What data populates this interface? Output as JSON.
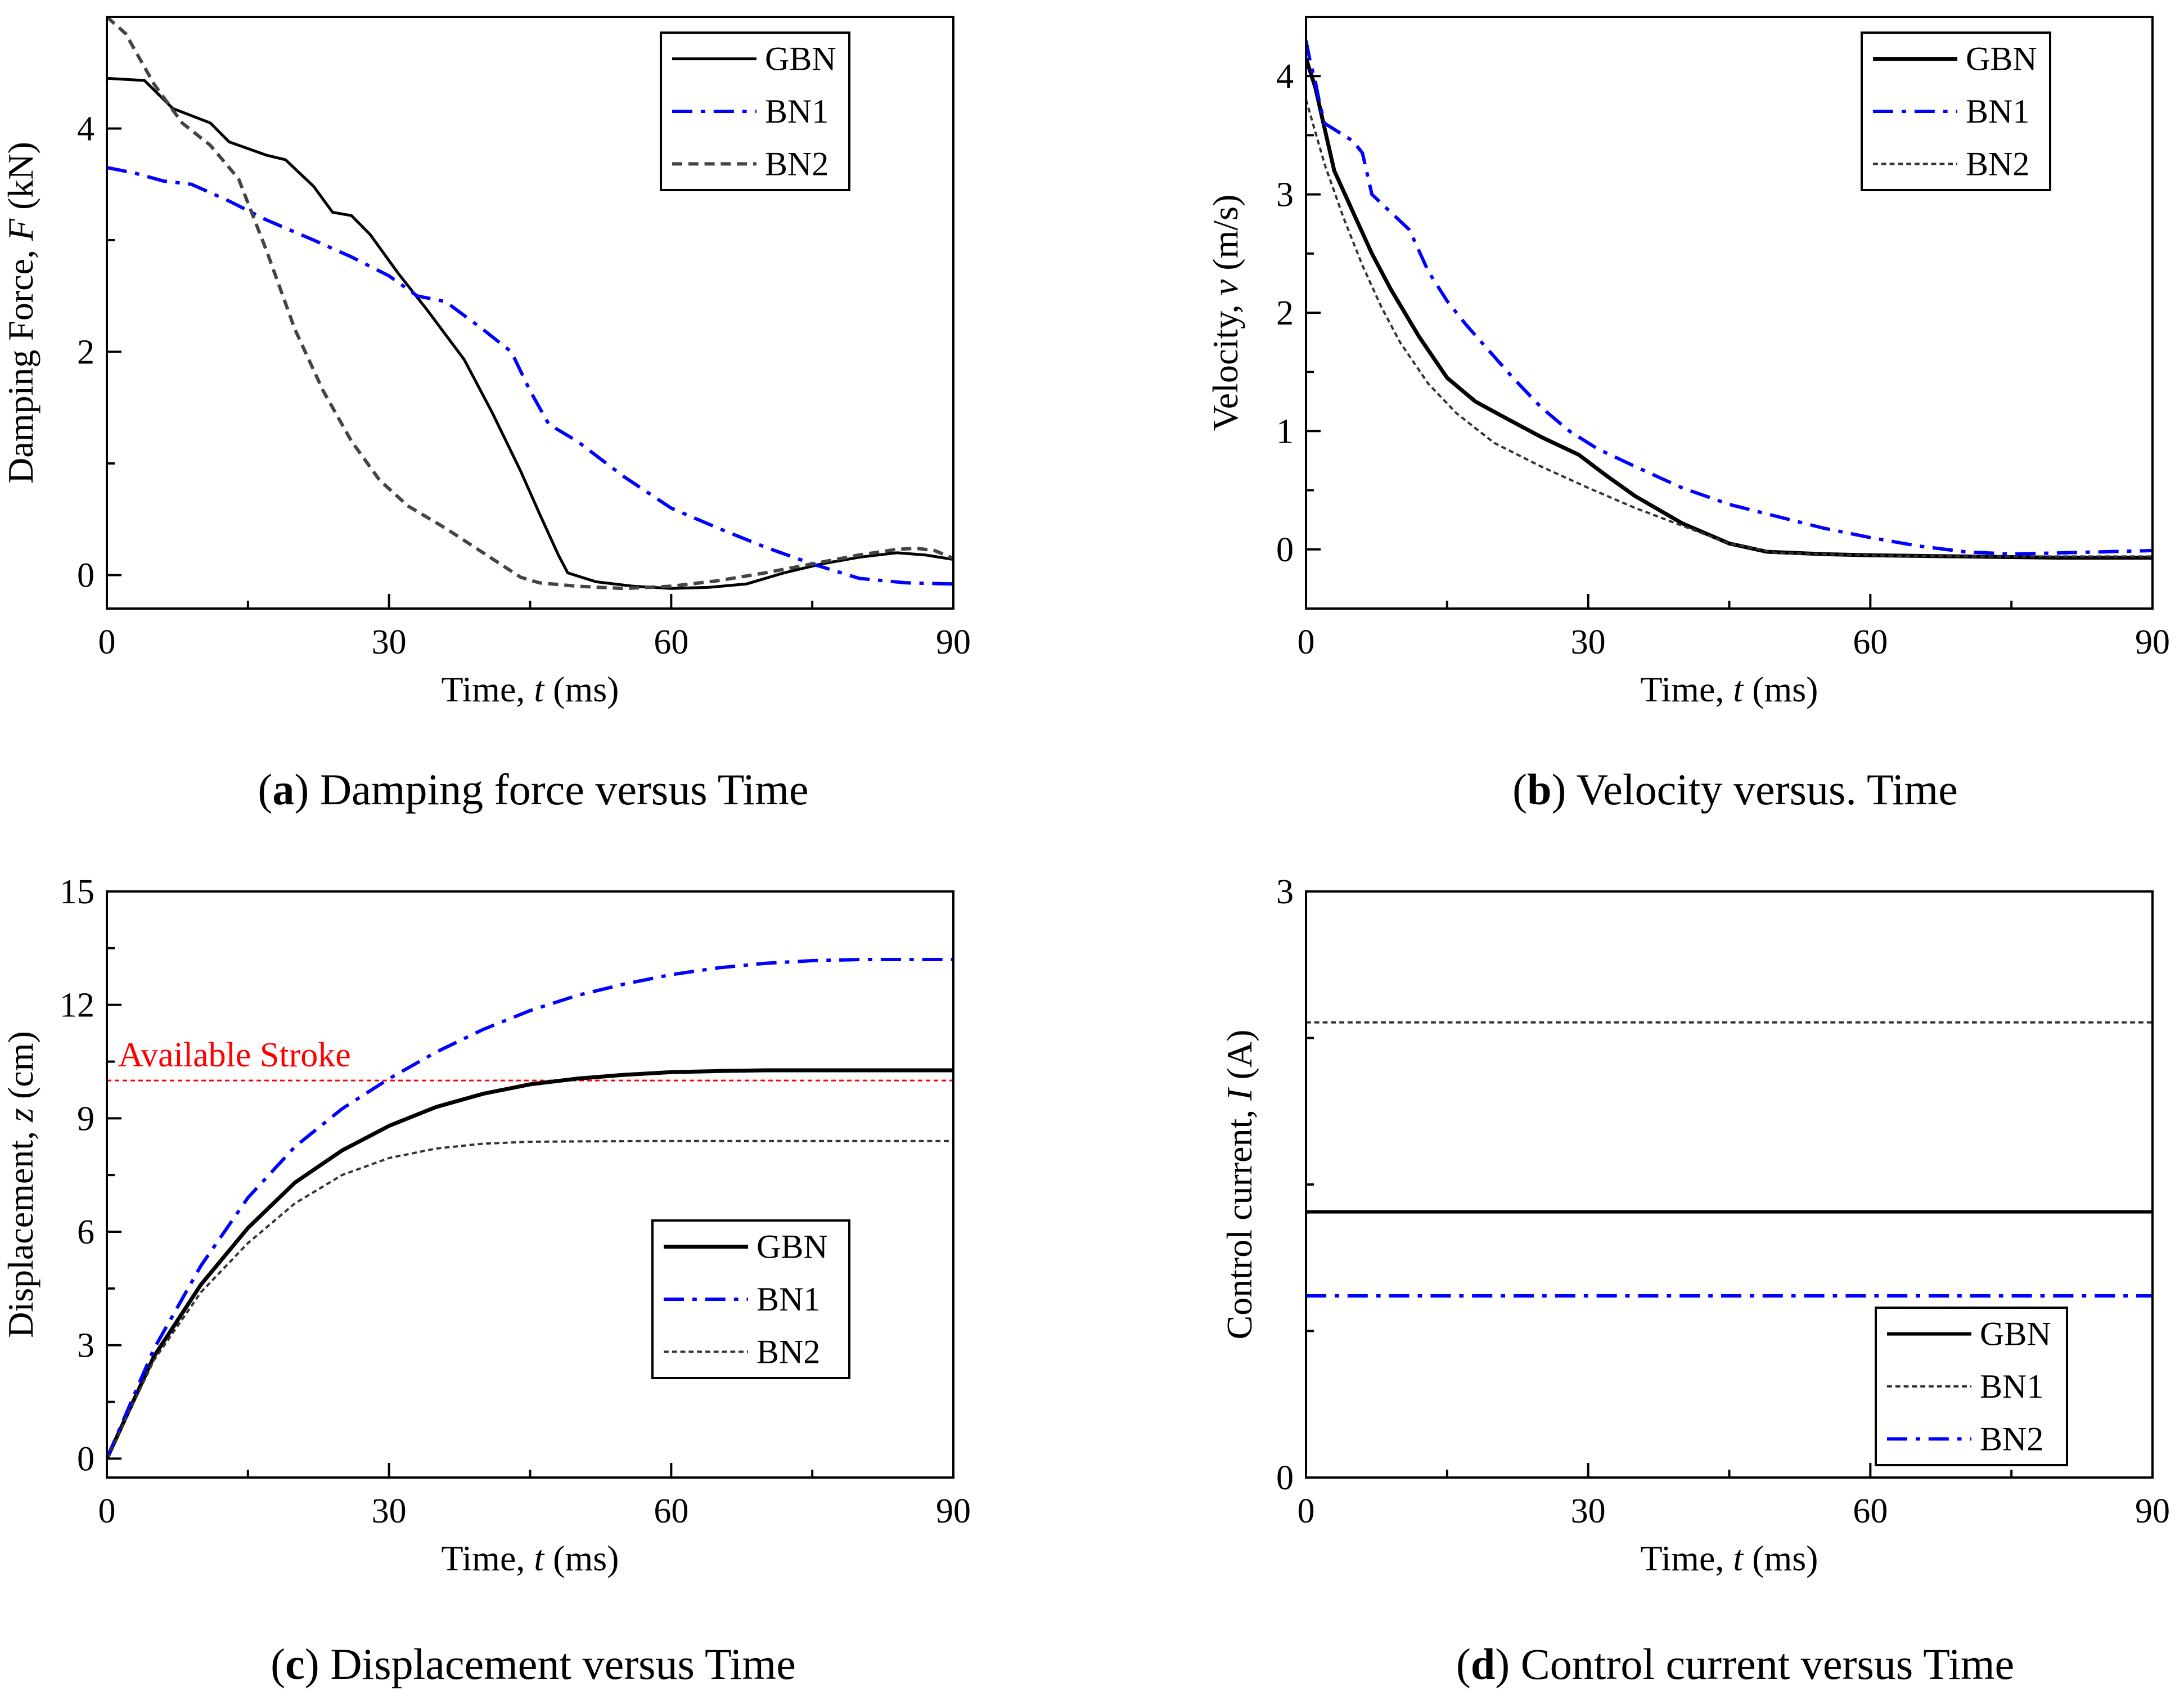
{
  "chart_data": [
    {
      "type": "line",
      "caption": {
        "letter": "a",
        "text": ") Damping force versus Time"
      },
      "xlabel": {
        "prefix": "Time, ",
        "var": "t",
        "suffix": " (ms)"
      },
      "ylabel": {
        "prefix": "Damping Force, ",
        "var": "F",
        "suffix": " (kN)"
      },
      "xlim": [
        0,
        90
      ],
      "ylim": [
        -0.3,
        5.0
      ],
      "xticks": [
        0,
        30,
        60,
        90
      ],
      "xminor": [
        15,
        45,
        75
      ],
      "yticks": [
        0,
        2,
        4
      ],
      "yminor": [
        1,
        3
      ],
      "legend": {
        "position": "top-right"
      },
      "series": [
        {
          "name": "GBN",
          "color": "#000000",
          "style": "solid",
          "width": 5,
          "x": [
            0,
            4,
            7,
            11,
            13,
            17,
            19,
            22,
            24,
            26,
            28,
            31,
            34,
            38,
            41,
            44,
            46,
            48,
            49,
            52,
            56,
            60,
            64,
            68,
            72,
            76,
            80,
            84,
            87,
            90
          ],
          "y": [
            4.45,
            4.43,
            4.18,
            4.05,
            3.88,
            3.76,
            3.72,
            3.48,
            3.25,
            3.22,
            3.05,
            2.7,
            2.38,
            1.93,
            1.45,
            0.93,
            0.55,
            0.18,
            0.02,
            -0.06,
            -0.1,
            -0.12,
            -0.11,
            -0.08,
            0.02,
            0.1,
            0.16,
            0.2,
            0.18,
            0.14
          ]
        },
        {
          "name": "BN1",
          "color": "#0000ff",
          "style": "dashdot",
          "width": 6,
          "x": [
            0,
            3,
            6,
            9,
            13,
            17,
            22,
            26,
            30,
            33,
            36,
            40,
            43,
            45,
            47,
            50,
            55,
            60,
            65,
            70,
            75,
            80,
            85,
            90
          ],
          "y": [
            3.65,
            3.6,
            3.53,
            3.5,
            3.35,
            3.18,
            3.0,
            2.85,
            2.68,
            2.5,
            2.45,
            2.2,
            2.0,
            1.65,
            1.35,
            1.2,
            0.88,
            0.6,
            0.42,
            0.25,
            0.1,
            -0.03,
            -0.07,
            -0.08
          ]
        },
        {
          "name": "BN2",
          "color": "#444444",
          "style": "dashed",
          "width": 6,
          "x": [
            0,
            2,
            5,
            8,
            11,
            14,
            17,
            20,
            23,
            26,
            29,
            32,
            36,
            40,
            44,
            46,
            50,
            55,
            60,
            65,
            70,
            75,
            80,
            84,
            86,
            88,
            90
          ],
          "y": [
            5.0,
            4.85,
            4.4,
            4.05,
            3.85,
            3.55,
            2.9,
            2.2,
            1.65,
            1.2,
            0.85,
            0.62,
            0.42,
            0.2,
            -0.02,
            -0.07,
            -0.1,
            -0.12,
            -0.1,
            -0.05,
            0.02,
            0.1,
            0.18,
            0.23,
            0.24,
            0.22,
            0.15
          ]
        }
      ]
    },
    {
      "type": "line",
      "caption": {
        "letter": "b",
        "text": ") Velocity versus. Time"
      },
      "xlabel": {
        "prefix": "Time, ",
        "var": "t",
        "suffix": " (ms)"
      },
      "ylabel": {
        "prefix": "Velocity, ",
        "var": "v",
        "suffix": " (m/s)"
      },
      "xlim": [
        0,
        90
      ],
      "ylim": [
        -0.5,
        4.5
      ],
      "xticks": [
        0,
        30,
        60,
        90
      ],
      "xminor": [
        15,
        45,
        75
      ],
      "yticks": [
        0,
        1,
        2,
        3,
        4
      ],
      "yminor": [
        0.5,
        1.5,
        2.5,
        3.5
      ],
      "legend": {
        "position": "top-right"
      },
      "series": [
        {
          "name": "GBN",
          "color": "#000000",
          "style": "solid",
          "width": 7,
          "x": [
            0,
            1,
            2,
            3,
            5,
            7,
            9,
            12,
            15,
            18,
            21,
            25,
            29,
            32,
            35,
            40,
            45,
            49,
            55,
            60,
            70,
            80,
            90
          ],
          "y": [
            4.15,
            3.9,
            3.55,
            3.2,
            2.85,
            2.5,
            2.2,
            1.8,
            1.45,
            1.25,
            1.12,
            0.95,
            0.8,
            0.62,
            0.45,
            0.22,
            0.05,
            -0.02,
            -0.04,
            -0.05,
            -0.06,
            -0.07,
            -0.07
          ]
        },
        {
          "name": "BN1",
          "color": "#0000ff",
          "style": "dashdot",
          "width": 6,
          "x": [
            0,
            0.5,
            1,
            1.5,
            2,
            3,
            5,
            6,
            7,
            9,
            11,
            13,
            15,
            17,
            19,
            22,
            25,
            28,
            31,
            35,
            40,
            45,
            50,
            55,
            60,
            65,
            70,
            75,
            80,
            85,
            90
          ],
          "y": [
            4.3,
            4.1,
            3.95,
            3.75,
            3.6,
            3.55,
            3.45,
            3.35,
            3.0,
            2.85,
            2.7,
            2.35,
            2.1,
            1.9,
            1.72,
            1.45,
            1.2,
            1.0,
            0.85,
            0.7,
            0.52,
            0.38,
            0.28,
            0.18,
            0.1,
            0.03,
            -0.02,
            -0.04,
            -0.03,
            -0.02,
            -0.01
          ]
        },
        {
          "name": "BN2",
          "color": "#333333",
          "style": "dotted",
          "width": 4,
          "x": [
            0,
            2,
            4,
            6,
            8,
            10,
            13,
            16,
            20,
            25,
            30,
            35,
            40,
            45,
            50,
            60,
            70,
            80,
            90
          ],
          "y": [
            3.8,
            3.25,
            2.8,
            2.4,
            2.05,
            1.75,
            1.4,
            1.15,
            0.9,
            0.7,
            0.52,
            0.35,
            0.2,
            0.05,
            -0.03,
            -0.05,
            -0.06,
            -0.06,
            -0.06
          ]
        }
      ]
    },
    {
      "type": "line",
      "caption": {
        "letter": "c",
        "text": ") Displacement versus Time"
      },
      "xlabel": {
        "prefix": "Time, ",
        "var": "t",
        "suffix": " (ms)"
      },
      "ylabel": {
        "prefix": "Displacement, ",
        "var": "z",
        "suffix": " (cm)"
      },
      "xlim": [
        0,
        90
      ],
      "ylim": [
        -0.5,
        15
      ],
      "xticks": [
        0,
        30,
        60,
        90
      ],
      "xminor": [
        15,
        45,
        75
      ],
      "yticks": [
        0,
        3,
        6,
        9,
        12,
        15
      ],
      "yminor": [
        1.5,
        4.5,
        7.5,
        10.5,
        13.5
      ],
      "legend": {
        "position": "center-right"
      },
      "annotation": {
        "text": "Available Stroke",
        "y": 10.0,
        "color": "#ff0000"
      },
      "series": [
        {
          "name": "GBN",
          "color": "#000000",
          "style": "solid",
          "width": 7,
          "x": [
            0,
            5,
            10,
            15,
            20,
            25,
            30,
            35,
            40,
            45,
            50,
            55,
            60,
            65,
            70,
            75,
            80,
            85,
            90
          ],
          "y": [
            0,
            2.7,
            4.6,
            6.1,
            7.3,
            8.15,
            8.8,
            9.3,
            9.65,
            9.9,
            10.05,
            10.15,
            10.22,
            10.25,
            10.27,
            10.27,
            10.27,
            10.27,
            10.27
          ]
        },
        {
          "name": "BN1",
          "color": "#0000ff",
          "style": "dashdot",
          "width": 6,
          "x": [
            0,
            5,
            10,
            15,
            20,
            25,
            30,
            35,
            40,
            45,
            50,
            55,
            60,
            65,
            70,
            75,
            80,
            85,
            90
          ],
          "y": [
            0,
            2.9,
            5.1,
            6.9,
            8.25,
            9.25,
            10.05,
            10.75,
            11.35,
            11.85,
            12.25,
            12.55,
            12.8,
            12.98,
            13.1,
            13.17,
            13.2,
            13.2,
            13.2
          ]
        },
        {
          "name": "BN2",
          "color": "#333333",
          "style": "dotted",
          "width": 4,
          "x": [
            0,
            5,
            10,
            15,
            20,
            25,
            30,
            35,
            40,
            45,
            50,
            60,
            70,
            80,
            90
          ],
          "y": [
            0,
            2.6,
            4.4,
            5.7,
            6.75,
            7.5,
            7.95,
            8.2,
            8.33,
            8.38,
            8.39,
            8.4,
            8.4,
            8.4,
            8.4
          ]
        }
      ]
    },
    {
      "type": "line",
      "caption": {
        "letter": "d",
        "text": ") Control current versus Time"
      },
      "xlabel": {
        "prefix": "Time, ",
        "var": "t",
        "suffix": " (ms)"
      },
      "ylabel": {
        "prefix": "Control current, ",
        "var": "I",
        "suffix": " (A)"
      },
      "xlim": [
        0,
        90
      ],
      "ylim": [
        0,
        3
      ],
      "xticks": [
        0,
        30,
        60,
        90
      ],
      "xminor": [
        15,
        45,
        75
      ],
      "yticks": [
        0,
        3
      ],
      "yminor": [
        0.75,
        1.5,
        2.25
      ],
      "legend": {
        "position": "bottom-right"
      },
      "series": [
        {
          "name": "GBN",
          "color": "#000000",
          "style": "solid",
          "width": 6,
          "x": [
            0,
            90
          ],
          "y": [
            1.36,
            1.36
          ]
        },
        {
          "name": "BN1",
          "color": "#333333",
          "style": "dotted",
          "width": 4,
          "x": [
            0,
            90
          ],
          "y": [
            2.33,
            2.33
          ]
        },
        {
          "name": "BN2",
          "color": "#0000ff",
          "style": "dashdot",
          "width": 6,
          "x": [
            0,
            90
          ],
          "y": [
            0.93,
            0.93
          ]
        }
      ]
    }
  ]
}
